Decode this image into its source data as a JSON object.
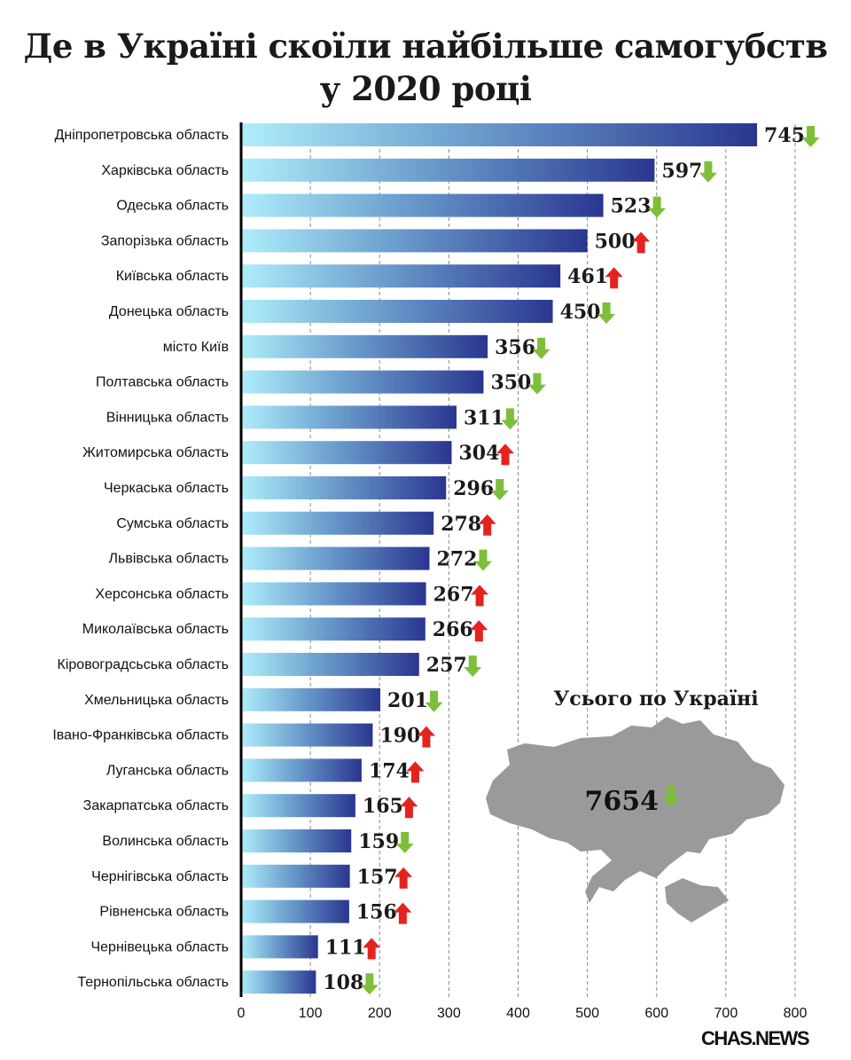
{
  "chart_data": {
    "type": "bar",
    "orientation": "horizontal",
    "title": "Де в Україні скоїли найбільше самогубств у 2020 році",
    "title_lines": [
      "Де в Україні скоїли найбільше самогубств",
      "у 2020 році"
    ],
    "categories": [
      "Дніпропетровська область",
      "Харківська область",
      "Одеська область",
      "Запорізька область",
      "Київська область",
      "Донецька область",
      "місто Київ",
      "Полтавська область",
      "Вінницька область",
      "Житомирська область",
      "Черкаська область",
      "Сумська область",
      "Львівська область",
      "Херсонська область",
      "Миколаївська область",
      "Кіровоградсьська область",
      "Хмельницька область",
      "Івано-Франківська область",
      "Луганська область",
      "Закарпатська область",
      "Волинська область",
      "Чернігівська область",
      "Рівненська область",
      "Чернівецька область",
      "Тернопільська область"
    ],
    "values": [
      745,
      597,
      523,
      500,
      461,
      450,
      356,
      350,
      311,
      304,
      296,
      278,
      272,
      267,
      266,
      257,
      201,
      190,
      174,
      165,
      159,
      157,
      156,
      111,
      108
    ],
    "trend": [
      "down",
      "down",
      "down",
      "up",
      "up",
      "down",
      "down",
      "down",
      "down",
      "up",
      "down",
      "up",
      "down",
      "up",
      "up",
      "down",
      "down",
      "up",
      "up",
      "up",
      "down",
      "up",
      "up",
      "up",
      "down"
    ],
    "xlim": [
      0,
      800
    ],
    "xticks": [
      "0",
      "100",
      "200",
      "300",
      "400",
      "500",
      "600",
      "700",
      "800"
    ],
    "grid": "vertical dashed",
    "colors": {
      "bar_start": "#aeeefb",
      "bar_end": "#2a3690",
      "up": "#e4231f",
      "down": "#7dbf3a",
      "map": "#9a9a9c"
    },
    "total": {
      "label": "Усього по Україні",
      "value": "7654",
      "trend": "down"
    }
  },
  "source_logo": "CHAS.NEWS"
}
